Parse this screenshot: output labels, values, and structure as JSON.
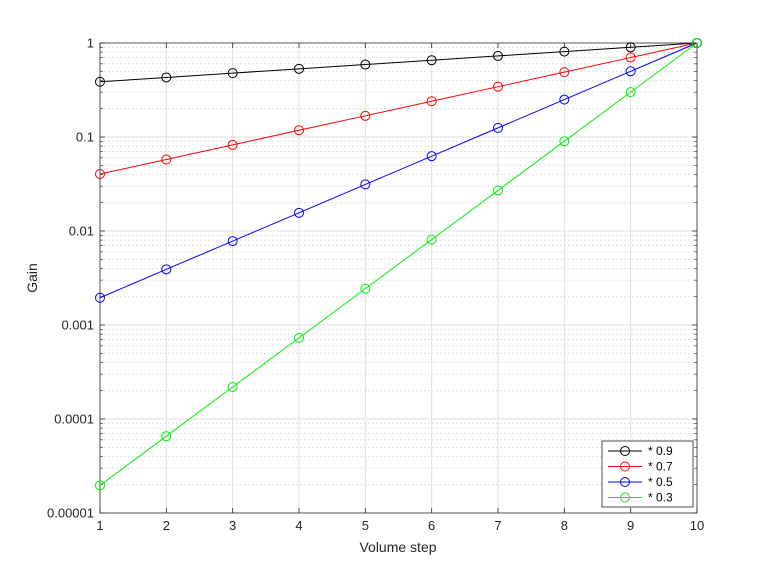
{
  "chart_data": {
    "type": "line",
    "title": "",
    "xlabel": "Volume step",
    "ylabel": "Gain",
    "x": [
      1,
      2,
      3,
      4,
      5,
      6,
      7,
      8,
      9,
      10
    ],
    "xlim": [
      1,
      10
    ],
    "ylim": [
      1e-05,
      1
    ],
    "yscale": "log",
    "x_ticks": [
      "1",
      "2",
      "3",
      "4",
      "5",
      "6",
      "7",
      "8",
      "9",
      "10"
    ],
    "y_ticks": [
      {
        "value": 1e-05,
        "label": "0.00001"
      },
      {
        "value": 0.0001,
        "label": "0.0001"
      },
      {
        "value": 0.001,
        "label": "0.001"
      },
      {
        "value": 0.01,
        "label": "0.01"
      },
      {
        "value": 0.1,
        "label": "0.1"
      },
      {
        "value": 1,
        "label": "1"
      }
    ],
    "grid": true,
    "legend_position": "bottom-right",
    "marker": "circle",
    "series": [
      {
        "name": "* 0.9",
        "color": "#000000",
        "values": [
          0.387,
          0.43,
          0.478,
          0.531,
          0.59,
          0.656,
          0.729,
          0.81,
          0.9,
          1.0
        ]
      },
      {
        "name": "* 0.7",
        "color": "#ff0000",
        "values": [
          0.0404,
          0.0576,
          0.0824,
          0.118,
          0.168,
          0.24,
          0.343,
          0.49,
          0.7,
          1.0
        ]
      },
      {
        "name": "* 0.5",
        "color": "#0000ff",
        "values": [
          0.00195,
          0.00391,
          0.00781,
          0.0156,
          0.0313,
          0.0625,
          0.125,
          0.25,
          0.5,
          1.0
        ]
      },
      {
        "name": "* 0.3",
        "color": "#00ee00",
        "values": [
          1.97e-05,
          6.56e-05,
          0.000219,
          0.000729,
          0.00243,
          0.0081,
          0.027,
          0.09,
          0.3,
          1.0
        ]
      }
    ]
  }
}
